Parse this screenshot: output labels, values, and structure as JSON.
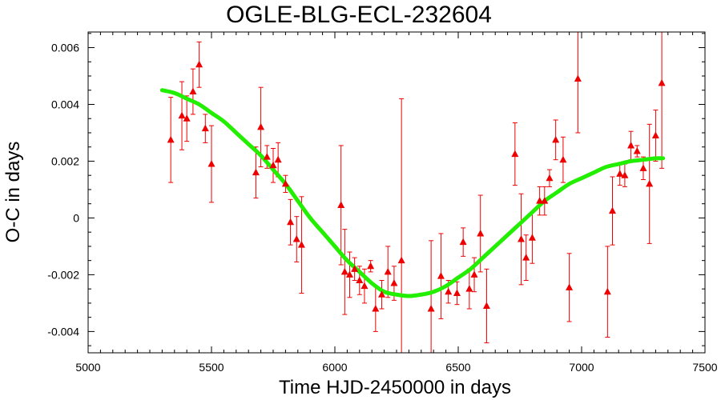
{
  "chart_data": {
    "type": "scatter",
    "title": "OGLE-BLG-ECL-232604",
    "xlabel": "Time HJD-2450000 in days",
    "ylabel": "O-C in days",
    "xlim": [
      5000,
      7500
    ],
    "ylim": [
      -0.00475,
      0.00655
    ],
    "xticks": [
      5000,
      5500,
      6000,
      6500,
      7000,
      7500
    ],
    "xtick_labels": [
      "5000",
      "5500",
      "6000",
      "6500",
      "7000",
      "7500"
    ],
    "yticks": [
      -0.004,
      -0.002,
      0,
      0.002,
      0.004,
      0.006
    ],
    "ytick_labels": [
      "-0.004",
      "-0.002",
      "0",
      "0.002",
      "0.004",
      "0.006"
    ],
    "grid": false,
    "colors": {
      "points": "#ee0000",
      "fit": "#22ee00",
      "axes": "#000000"
    },
    "series": [
      {
        "kind": "points_with_errorbars",
        "points": [
          {
            "x": 5335,
            "y": 0.00275,
            "err": 0.0015
          },
          {
            "x": 5380,
            "y": 0.0036,
            "err": 0.0012
          },
          {
            "x": 5400,
            "y": 0.0035,
            "err": 0.0008
          },
          {
            "x": 5425,
            "y": 0.00445,
            "err": 0.0008
          },
          {
            "x": 5450,
            "y": 0.0054,
            "err": 0.0008
          },
          {
            "x": 5475,
            "y": 0.00315,
            "err": 0.0005
          },
          {
            "x": 5500,
            "y": 0.0019,
            "err": 0.00135
          },
          {
            "x": 5680,
            "y": 0.0016,
            "err": 0.0009
          },
          {
            "x": 5700,
            "y": 0.0032,
            "err": 0.0014
          },
          {
            "x": 5725,
            "y": 0.00215,
            "err": 0.0004
          },
          {
            "x": 5750,
            "y": 0.00185,
            "err": 0.0006
          },
          {
            "x": 5770,
            "y": 0.00205,
            "err": 0.0006
          },
          {
            "x": 5800,
            "y": 0.0012,
            "err": 0.0003
          },
          {
            "x": 5820,
            "y": -0.00015,
            "err": 0.0008
          },
          {
            "x": 5845,
            "y": -0.00075,
            "err": 0.0008
          },
          {
            "x": 5865,
            "y": -0.00095,
            "err": 0.0017
          },
          {
            "x": 6025,
            "y": 0.00045,
            "err": 0.0021
          },
          {
            "x": 6040,
            "y": -0.0019,
            "err": 0.0015
          },
          {
            "x": 6060,
            "y": -0.002,
            "err": 0.0008
          },
          {
            "x": 6080,
            "y": -0.0018,
            "err": 0.0004
          },
          {
            "x": 6100,
            "y": -0.0022,
            "err": 0.0005
          },
          {
            "x": 6120,
            "y": -0.0024,
            "err": 0.0006
          },
          {
            "x": 6145,
            "y": -0.0017,
            "err": 0.0002
          },
          {
            "x": 6165,
            "y": -0.0032,
            "err": 0.0008
          },
          {
            "x": 6190,
            "y": -0.0027,
            "err": 0.0005
          },
          {
            "x": 6215,
            "y": -0.0019,
            "err": 0.0009
          },
          {
            "x": 6240,
            "y": -0.0023,
            "err": 0.0006
          },
          {
            "x": 6270,
            "y": -0.0015,
            "err": 0.0057
          },
          {
            "x": 6390,
            "y": -0.0032,
            "err": 0.0024
          },
          {
            "x": 6430,
            "y": -0.00205,
            "err": 0.0015
          },
          {
            "x": 6460,
            "y": -0.0026,
            "err": 0.0004
          },
          {
            "x": 6495,
            "y": -0.00265,
            "err": 0.0004
          },
          {
            "x": 6520,
            "y": -0.00085,
            "err": 0.0005
          },
          {
            "x": 6545,
            "y": -0.0025,
            "err": 0.0007
          },
          {
            "x": 6565,
            "y": -0.002,
            "err": 0.0006
          },
          {
            "x": 6590,
            "y": -0.00055,
            "err": 0.00135
          },
          {
            "x": 6615,
            "y": -0.0031,
            "err": 0.0013
          },
          {
            "x": 6730,
            "y": 0.00225,
            "err": 0.0011
          },
          {
            "x": 6755,
            "y": -0.00075,
            "err": 0.0016
          },
          {
            "x": 6775,
            "y": -0.0014,
            "err": 0.0008
          },
          {
            "x": 6800,
            "y": -0.0007,
            "err": 0.0009
          },
          {
            "x": 6830,
            "y": 0.0006,
            "err": 0.0005
          },
          {
            "x": 6850,
            "y": 0.0006,
            "err": 0.0005
          },
          {
            "x": 6870,
            "y": 0.0014,
            "err": 0.0003
          },
          {
            "x": 6895,
            "y": 0.00275,
            "err": 0.0007
          },
          {
            "x": 6925,
            "y": 0.00205,
            "err": 0.0008
          },
          {
            "x": 6950,
            "y": -0.00245,
            "err": 0.0012
          },
          {
            "x": 6985,
            "y": 0.0049,
            "err": 0.0019
          },
          {
            "x": 7105,
            "y": -0.0026,
            "err": 0.0016
          },
          {
            "x": 7125,
            "y": 0.00025,
            "err": 0.0012
          },
          {
            "x": 7155,
            "y": 0.00155,
            "err": 0.0004
          },
          {
            "x": 7175,
            "y": 0.0015,
            "err": 0.0004
          },
          {
            "x": 7200,
            "y": 0.00255,
            "err": 0.0005
          },
          {
            "x": 7225,
            "y": 0.00235,
            "err": 0.0002
          },
          {
            "x": 7250,
            "y": 0.00175,
            "err": 0.0004
          },
          {
            "x": 7275,
            "y": 0.0012,
            "err": 0.0021
          },
          {
            "x": 7300,
            "y": 0.0029,
            "err": 0.0009
          },
          {
            "x": 7325,
            "y": 0.00475,
            "err": 0.003
          }
        ]
      },
      {
        "kind": "fit_curve",
        "x": [
          5300,
          5350,
          5400,
          5450,
          5500,
          5550,
          5600,
          5650,
          5700,
          5750,
          5800,
          5850,
          5900,
          5950,
          6000,
          6050,
          6100,
          6150,
          6200,
          6250,
          6300,
          6350,
          6400,
          6450,
          6500,
          6550,
          6600,
          6650,
          6700,
          6750,
          6800,
          6850,
          6900,
          6950,
          7000,
          7050,
          7100,
          7150,
          7200,
          7250,
          7300,
          7330
        ],
        "y": [
          0.0045,
          0.0044,
          0.0042,
          0.004,
          0.0037,
          0.0034,
          0.003,
          0.0026,
          0.0022,
          0.0017,
          0.0012,
          0.0006,
          0.0,
          -0.0005,
          -0.001,
          -0.0015,
          -0.0019,
          -0.0023,
          -0.0026,
          -0.0027,
          -0.00275,
          -0.0027,
          -0.0026,
          -0.0024,
          -0.0021,
          -0.0018,
          -0.0014,
          -0.001,
          -0.0006,
          -0.0002,
          0.0002,
          0.0006,
          0.0009,
          0.0012,
          0.0014,
          0.0016,
          0.0018,
          0.0019,
          0.002,
          0.00205,
          0.0021,
          0.0021
        ]
      }
    ]
  }
}
